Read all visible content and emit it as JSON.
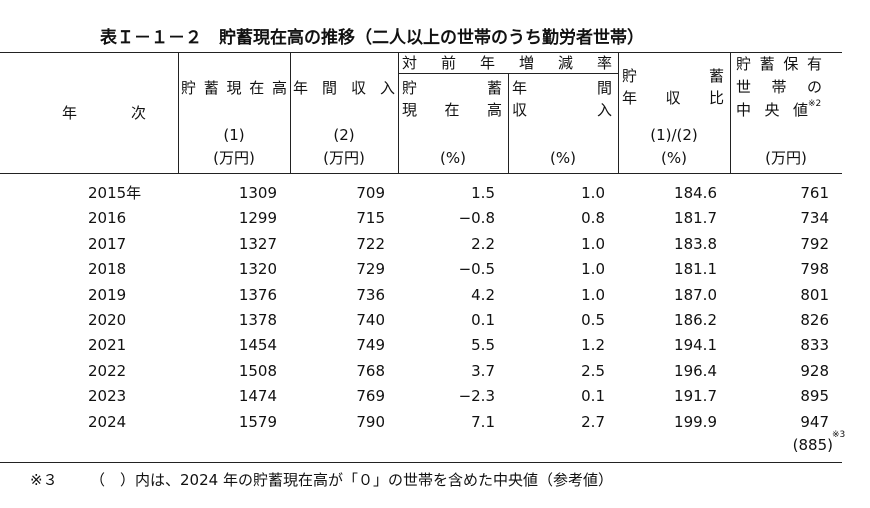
{
  "title": "表Ｉ－１－２　貯蓄現在高の推移（二人以上の世帯のうち勤労者世帯）",
  "header": {
    "year": "年次",
    "group": "対前年増減率",
    "columns": [
      {
        "lines": [
          "貯蓄現在高"
        ],
        "number": "(1)",
        "unit": "(万円)"
      },
      {
        "lines": [
          "年間収入"
        ],
        "number": "(2)",
        "unit": "(万円)"
      },
      {
        "lines": [
          "貯蓄",
          "現在高"
        ],
        "unit": "(%)"
      },
      {
        "lines": [
          "年間",
          "収入"
        ],
        "unit": "(%)"
      },
      {
        "lines": [
          "貯蓄",
          "年収比"
        ],
        "number": "(1)/(2)",
        "unit": "(%)"
      },
      {
        "lines": [
          "貯蓄保有",
          "世帯の",
          "中央値"
        ],
        "note": "※2",
        "unit": "(万円)"
      }
    ]
  },
  "rows": [
    [
      "2015年",
      "1309",
      "709",
      "1.5",
      "1.0",
      "184.6",
      "761"
    ],
    [
      "2016",
      "1299",
      "715",
      "−0.8",
      "0.8",
      "181.7",
      "734"
    ],
    [
      "2017",
      "1327",
      "722",
      "2.2",
      "1.0",
      "183.8",
      "792"
    ],
    [
      "2018",
      "1320",
      "729",
      "−0.5",
      "1.0",
      "181.1",
      "798"
    ],
    [
      "2019",
      "1376",
      "736",
      "4.2",
      "1.0",
      "187.0",
      "801"
    ],
    [
      "2020",
      "1378",
      "740",
      "0.1",
      "0.5",
      "186.2",
      "826"
    ],
    [
      "2021",
      "1454",
      "749",
      "5.5",
      "1.2",
      "194.1",
      "833"
    ],
    [
      "2022",
      "1508",
      "768",
      "3.7",
      "2.5",
      "196.4",
      "928"
    ],
    [
      "2023",
      "1474",
      "769",
      "−2.3",
      "0.1",
      "191.7",
      "895"
    ],
    [
      "2024",
      "1579",
      "790",
      "7.1",
      "2.7",
      "199.9",
      "947"
    ]
  ],
  "reference": {
    "value": "(885)",
    "note": "※3"
  },
  "footnote": {
    "mark": "※３",
    "text": "（　）内は、2024 年の貯蓄現在高が「０」の世帯を含めた中央値（参考値）"
  }
}
